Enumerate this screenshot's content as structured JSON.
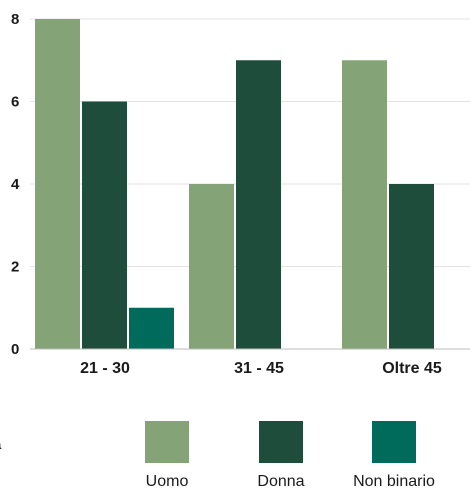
{
  "chart_data": {
    "type": "bar",
    "categories": [
      "21 - 30",
      "31 - 45",
      "Oltre 45"
    ],
    "series": [
      {
        "name": "Uomo",
        "values": [
          8,
          4,
          7
        ],
        "color": "#84a376"
      },
      {
        "name": "Donna",
        "values": [
          6,
          7,
          4
        ],
        "color": "#1f4d3b"
      },
      {
        "name": "Non binario",
        "values": [
          1,
          0,
          0
        ],
        "color": "#006a5b"
      }
    ],
    "yticks": [
      0,
      2,
      4,
      6,
      8
    ],
    "ylim": [
      0,
      8
    ],
    "grid": true,
    "legend": "bottom",
    "title": "",
    "xlabel": "",
    "ylabel": ""
  },
  "clipped_label": {
    "line1": "na",
    "line2": "%"
  }
}
